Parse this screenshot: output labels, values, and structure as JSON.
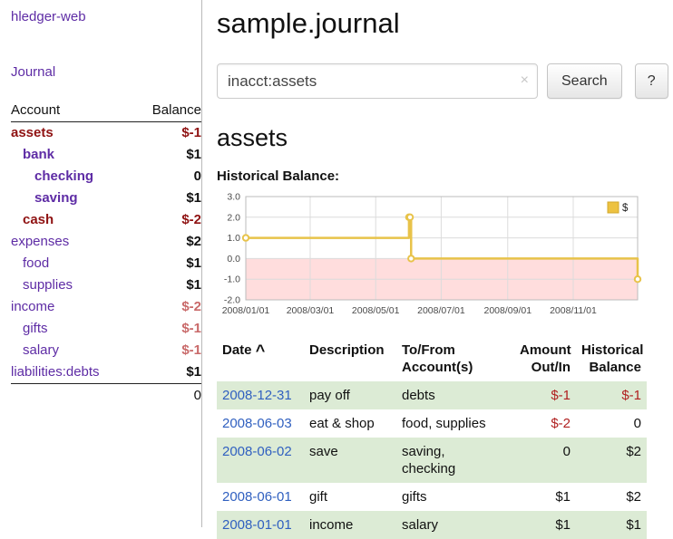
{
  "app": {
    "title": "hledger-web",
    "nav_journal": "Journal"
  },
  "sidebar": {
    "columns": {
      "account": "Account",
      "balance": "Balance"
    },
    "accounts": [
      {
        "name": "assets",
        "balance": "$-1",
        "indent": 0,
        "bold": true,
        "name_negative": true,
        "balance_negative": "strong"
      },
      {
        "name": "bank",
        "balance": "$1",
        "indent": 1,
        "bold": true
      },
      {
        "name": "checking",
        "balance": "0",
        "indent": 2,
        "bold": true
      },
      {
        "name": "saving",
        "balance": "$1",
        "indent": 2,
        "bold": true
      },
      {
        "name": "cash",
        "balance": "$-2",
        "indent": 1,
        "bold": true,
        "name_negative": true,
        "balance_negative": "strong"
      },
      {
        "name": "expenses",
        "balance": "$2",
        "indent": 0
      },
      {
        "name": "food",
        "balance": "$1",
        "indent": 1
      },
      {
        "name": "supplies",
        "balance": "$1",
        "indent": 1
      },
      {
        "name": "income",
        "balance": "$-2",
        "indent": 0,
        "balance_negative": "soft"
      },
      {
        "name": "gifts",
        "balance": "$-1",
        "indent": 1,
        "balance_negative": "soft"
      },
      {
        "name": "salary",
        "balance": "$-1",
        "indent": 1,
        "balance_negative": "soft"
      },
      {
        "name": "liabilities:debts",
        "balance": "$1",
        "indent": 0
      }
    ],
    "total": "0"
  },
  "header": {
    "title": "sample.journal"
  },
  "search": {
    "value": "inacct:assets",
    "clear_icon": "×",
    "button_label": "Search",
    "help_label": "?"
  },
  "page": {
    "account_title": "assets",
    "chart_label": "Historical Balance:"
  },
  "chart_data": {
    "type": "line",
    "title": "Historical Balance of assets",
    "steps": true,
    "x": [
      "2008-01-01",
      "2008-06-01",
      "2008-06-02",
      "2008-06-03",
      "2008-12-31"
    ],
    "series": [
      {
        "name": "$",
        "values": [
          1,
          2,
          2,
          0,
          -1
        ]
      }
    ],
    "xrange": [
      "2008-01-01",
      "2008-12-31"
    ],
    "xticks": [
      "2008/01/01",
      "2008/03/01",
      "2008/05/01",
      "2008/07/01",
      "2008/09/01",
      "2008/11/01"
    ],
    "ylim": [
      -2,
      3
    ],
    "yticks": [
      3,
      2,
      1,
      0,
      -1,
      -2
    ],
    "ytick_labels": [
      "3.0",
      "2.0",
      "1.0",
      "0.0",
      "-1.0",
      "-2.0"
    ],
    "grid": true,
    "legend_position": "top-right",
    "legend": [
      {
        "label": "$",
        "color": "#edc240"
      }
    ],
    "series_color": "#e8c34a",
    "series_border_color": "#d2a82c",
    "negative_region_color": "#ffdddd"
  },
  "register": {
    "headers": {
      "date": "Date",
      "description": "Description",
      "accounts": "To/From\nAccount(s)",
      "amount": "Amount\nOut/In",
      "balance": "Historical\nBalance"
    },
    "sort_indicator": "^",
    "rows": [
      {
        "date": "2008-12-31",
        "description": "pay off",
        "accounts": "debts",
        "amount": "$-1",
        "amount_negative": true,
        "balance": "$-1",
        "balance_negative": true,
        "highlight": true
      },
      {
        "date": "2008-06-03",
        "description": "eat & shop",
        "accounts": "food, supplies",
        "amount": "$-2",
        "amount_negative": true,
        "balance": "0"
      },
      {
        "date": "2008-06-02",
        "description": "save",
        "accounts": "saving,\nchecking",
        "amount": "0",
        "balance": "$2",
        "highlight": true
      },
      {
        "date": "2008-06-01",
        "description": "gift",
        "accounts": "gifts",
        "amount": "$1",
        "balance": "$2"
      },
      {
        "date": "2008-01-01",
        "description": "income",
        "accounts": "salary",
        "amount": "$1",
        "balance": "$1",
        "highlight": true
      }
    ]
  },
  "colors": {
    "purple": "#5e2ca5",
    "negative_strong": "#8f1212",
    "negative_soft": "#c96a6a",
    "register_negative": "#b02020",
    "row_highlight": "#dcebd5",
    "link_blue": "#3060c0"
  }
}
